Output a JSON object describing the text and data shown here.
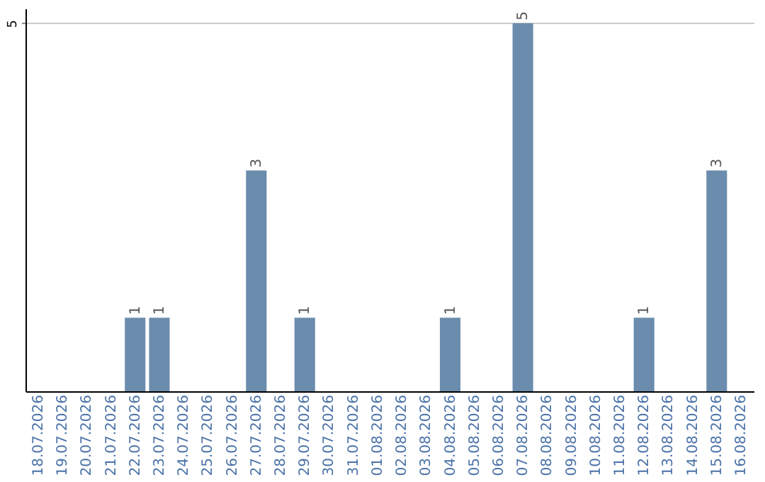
{
  "chart_data": {
    "type": "bar",
    "categories": [
      "18.07.2026",
      "19.07.2026",
      "20.07.2026",
      "21.07.2026",
      "22.07.2026",
      "23.07.2026",
      "24.07.2026",
      "25.07.2026",
      "26.07.2026",
      "27.07.2026",
      "28.07.2026",
      "29.07.2026",
      "30.07.2026",
      "31.07.2026",
      "01.08.2026",
      "02.08.2026",
      "03.08.2026",
      "04.08.2026",
      "05.08.2026",
      "06.08.2026",
      "07.08.2026",
      "08.08.2026",
      "09.08.2026",
      "10.08.2026",
      "11.08.2026",
      "12.08.2026",
      "13.08.2026",
      "14.08.2026",
      "15.08.2026",
      "16.08.2026"
    ],
    "values": [
      0,
      0,
      0,
      0,
      1,
      1,
      0,
      0,
      0,
      3,
      0,
      1,
      0,
      0,
      0,
      0,
      0,
      1,
      0,
      0,
      5,
      0,
      0,
      0,
      0,
      1,
      0,
      0,
      3,
      0
    ],
    "value_labels": [
      null,
      null,
      null,
      null,
      "1",
      "1",
      null,
      null,
      null,
      "3",
      null,
      "1",
      null,
      null,
      null,
      null,
      null,
      "1",
      null,
      null,
      "5",
      null,
      null,
      null,
      null,
      "1",
      null,
      null,
      "3",
      null
    ],
    "color": "#6b8cad",
    "ylim": [
      0,
      5.2
    ],
    "yticks": [
      5
    ],
    "grid": "y"
  }
}
